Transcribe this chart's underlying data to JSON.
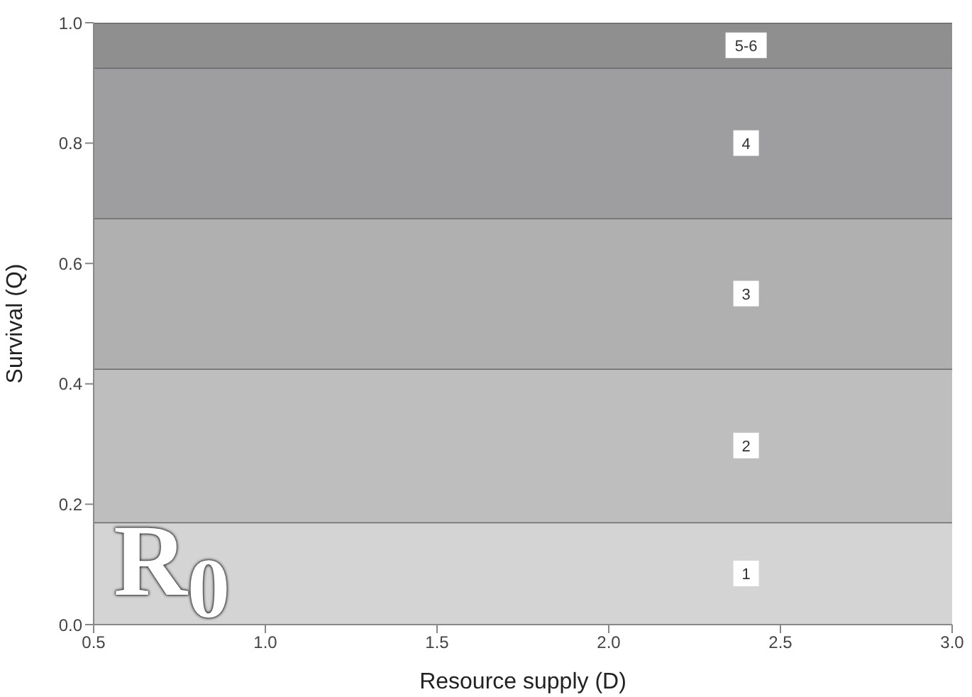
{
  "chart_data": {
    "type": "area",
    "stacked": true,
    "xlabel": "Resource supply (D)",
    "ylabel": "Survival (Q)",
    "x": [
      0.5,
      3.0
    ],
    "xlim": [
      0.5,
      3.0
    ],
    "xticks": [
      0.5,
      {
        "value": 1,
        "label": "1.0"
      },
      1.5,
      {
        "value": 2,
        "label": "2.0"
      },
      2.5,
      {
        "value": 3,
        "label": "3.0"
      }
    ],
    "ylim": [
      0,
      1
    ],
    "yticks": [
      {
        "value": 0,
        "label": "0.0"
      },
      0.2,
      0.4,
      0.6,
      0.8,
      {
        "value": 1,
        "label": "1.0"
      }
    ],
    "series": [
      {
        "name": "1",
        "color": "#d4d4d4",
        "values": [
          0.17,
          0.17
        ]
      },
      {
        "name": "2",
        "color": "#bebebe",
        "values": [
          0.255,
          0.255
        ]
      },
      {
        "name": "3",
        "color": "#b0b0b0",
        "values": [
          0.25,
          0.25
        ]
      },
      {
        "name": "4",
        "color": "#9e9ea1",
        "values": [
          0.25,
          0.25
        ]
      },
      {
        "name": "5-6",
        "color": "#8f8f8f",
        "values": [
          0.075,
          0.075
        ]
      }
    ],
    "annotations": [
      "R$_{0}$"
    ]
  }
}
